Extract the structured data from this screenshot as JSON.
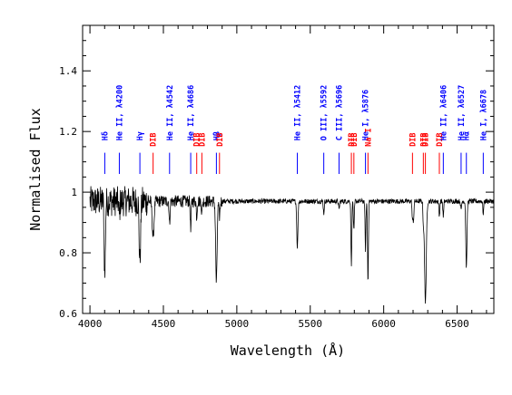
{
  "chart_data": {
    "type": "line",
    "xlabel": "Wavelength (Å)",
    "ylabel": "Normalised Flux",
    "xlim": [
      3950,
      6750
    ],
    "ylim": [
      0.6,
      1.55
    ],
    "x_ticks": [
      4000,
      4500,
      5000,
      5500,
      6000,
      6500
    ],
    "x_tick_labels": [
      "4000",
      "4500",
      "5000",
      "5500",
      "6000",
      "6500"
    ],
    "y_ticks": [
      0.6,
      0.8,
      1.0,
      1.2,
      1.4
    ],
    "y_tick_labels": [
      "0.6",
      "0.8",
      "1",
      "1.2",
      "1.4"
    ],
    "grid": false,
    "colors": {
      "spectrum": "#000000",
      "stellar_lines": "#0000ff",
      "dibs": "#ff0000"
    },
    "spectrum": {
      "continuum": 0.97,
      "noise_blue": 0.05,
      "noise_red": 0.008,
      "absorption_lines": [
        {
          "x": 4101,
          "depth": 0.25,
          "width": 4
        },
        {
          "x": 4200,
          "depth": 0.05,
          "width": 3
        },
        {
          "x": 4340,
          "depth": 0.2,
          "width": 5
        },
        {
          "x": 4430,
          "depth": 0.12,
          "width": 6
        },
        {
          "x": 4542,
          "depth": 0.08,
          "width": 3
        },
        {
          "x": 4686,
          "depth": 0.1,
          "width": 3
        },
        {
          "x": 4727,
          "depth": 0.05,
          "width": 3
        },
        {
          "x": 4762,
          "depth": 0.04,
          "width": 3
        },
        {
          "x": 4861,
          "depth": 0.27,
          "width": 5
        },
        {
          "x": 4882,
          "depth": 0.05,
          "width": 4
        },
        {
          "x": 5412,
          "depth": 0.15,
          "width": 4
        },
        {
          "x": 5592,
          "depth": 0.04,
          "width": 3
        },
        {
          "x": 5696,
          "depth": 0.03,
          "width": 3
        },
        {
          "x": 5780,
          "depth": 0.21,
          "width": 3
        },
        {
          "x": 5797,
          "depth": 0.1,
          "width": 3
        },
        {
          "x": 5876,
          "depth": 0.16,
          "width": 3
        },
        {
          "x": 5893,
          "depth": 0.27,
          "width": 3
        },
        {
          "x": 6196,
          "depth": 0.06,
          "width": 3
        },
        {
          "x": 6203,
          "depth": 0.06,
          "width": 3
        },
        {
          "x": 6270,
          "depth": 0.06,
          "width": 3
        },
        {
          "x": 6284,
          "depth": 0.33,
          "width": 6
        },
        {
          "x": 6379,
          "depth": 0.05,
          "width": 3
        },
        {
          "x": 6406,
          "depth": 0.05,
          "width": 3
        },
        {
          "x": 6527,
          "depth": 0.03,
          "width": 3
        },
        {
          "x": 6563,
          "depth": 0.22,
          "width": 4
        },
        {
          "x": 6678,
          "depth": 0.04,
          "width": 3
        }
      ]
    },
    "markers": [
      {
        "label": "Hδ",
        "x": 4101,
        "kind": "stellar"
      },
      {
        "label": "He II, λ4200",
        "x": 4200,
        "kind": "stellar"
      },
      {
        "label": "Hγ",
        "x": 4340,
        "kind": "stellar"
      },
      {
        "label": "DIB",
        "x": 4430,
        "kind": "dib"
      },
      {
        "label": "He II, λ4542",
        "x": 4542,
        "kind": "stellar"
      },
      {
        "label": "He II, λ4686",
        "x": 4686,
        "kind": "stellar"
      },
      {
        "label": "DIB",
        "x": 4727,
        "kind": "dib"
      },
      {
        "label": "DIB",
        "x": 4762,
        "kind": "dib"
      },
      {
        "label": "Hβ",
        "x": 4861,
        "kind": "stellar"
      },
      {
        "label": "DIB",
        "x": 4882,
        "kind": "dib"
      },
      {
        "label": "He II, λ5412",
        "x": 5412,
        "kind": "stellar"
      },
      {
        "label": "O III, λ5592",
        "x": 5592,
        "kind": "stellar"
      },
      {
        "label": "C III, λ5696",
        "x": 5696,
        "kind": "stellar"
      },
      {
        "label": "DIB",
        "x": 5780,
        "kind": "dib"
      },
      {
        "label": "DIB",
        "x": 5797,
        "kind": "dib"
      },
      {
        "label": "He I, λ5876",
        "x": 5876,
        "kind": "stellar"
      },
      {
        "label": "Na I",
        "x": 5893,
        "kind": "dib"
      },
      {
        "label": "DIB",
        "x": 6196,
        "kind": "dib"
      },
      {
        "label": "DIB",
        "x": 6270,
        "kind": "dib"
      },
      {
        "label": "DIB",
        "x": 6284,
        "kind": "dib"
      },
      {
        "label": "DIB",
        "x": 6379,
        "kind": "dib"
      },
      {
        "label": "He II, λ6406",
        "x": 6406,
        "kind": "stellar"
      },
      {
        "label": "He II, λ6527",
        "x": 6527,
        "kind": "stellar"
      },
      {
        "label": "Hα",
        "x": 6563,
        "kind": "stellar"
      },
      {
        "label": "He I, λ6678",
        "x": 6678,
        "kind": "stellar"
      }
    ]
  }
}
